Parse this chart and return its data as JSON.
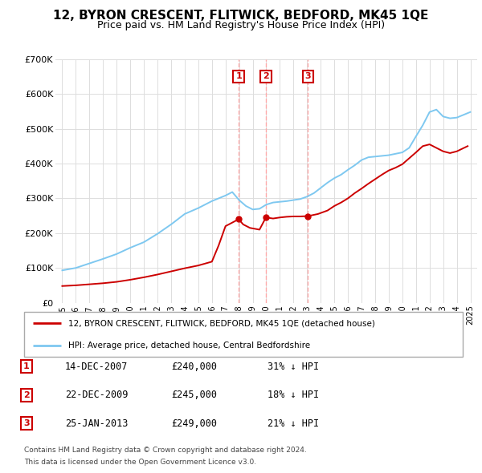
{
  "title": "12, BYRON CRESCENT, FLITWICK, BEDFORD, MK45 1QE",
  "subtitle": "Price paid vs. HM Land Registry's House Price Index (HPI)",
  "title_fontsize": 11,
  "subtitle_fontsize": 9,
  "hpi_years": [
    1995,
    1996,
    1997,
    1998,
    1999,
    2000,
    2001,
    2002,
    2003,
    2004,
    2005,
    2006,
    2007,
    2007.5,
    2008,
    2008.5,
    2009,
    2009.5,
    2010,
    2010.5,
    2011,
    2011.5,
    2012,
    2012.5,
    2013,
    2013.5,
    2014,
    2014.5,
    2015,
    2015.5,
    2016,
    2016.5,
    2017,
    2017.5,
    2018,
    2018.5,
    2019,
    2019.5,
    2020,
    2020.5,
    2021,
    2021.5,
    2022,
    2022.5,
    2023,
    2023.5,
    2024,
    2024.5,
    2025
  ],
  "hpi_values": [
    93000,
    100000,
    113000,
    126000,
    140000,
    158000,
    174000,
    198000,
    225000,
    255000,
    272000,
    292000,
    308000,
    318000,
    295000,
    278000,
    268000,
    270000,
    282000,
    288000,
    290000,
    292000,
    295000,
    298000,
    305000,
    315000,
    330000,
    345000,
    358000,
    368000,
    382000,
    395000,
    410000,
    418000,
    420000,
    422000,
    424000,
    428000,
    432000,
    445000,
    478000,
    510000,
    548000,
    555000,
    535000,
    530000,
    532000,
    540000,
    548000
  ],
  "price_years": [
    1995,
    1996,
    1997,
    1998,
    1999,
    2000,
    2001,
    2002,
    2003,
    2004,
    2005,
    2006,
    2006.5,
    2007.0,
    2007.97,
    2008.3,
    2008.8,
    2009.5,
    2009.97,
    2010.5,
    2011,
    2011.5,
    2012.0,
    2012.5,
    2013.07,
    2013.8,
    2014.5,
    2015,
    2015.5,
    2016,
    2016.5,
    2017,
    2017.5,
    2018,
    2018.5,
    2019,
    2019.5,
    2020,
    2020.5,
    2021,
    2021.5,
    2022,
    2022.5,
    2023,
    2023.5,
    2024,
    2024.8
  ],
  "price_values": [
    48000,
    50000,
    53000,
    56000,
    60000,
    66000,
    73000,
    81000,
    90000,
    99000,
    107000,
    118000,
    165000,
    220000,
    240000,
    225000,
    215000,
    210000,
    245000,
    242000,
    245000,
    247000,
    248000,
    248000,
    249000,
    255000,
    265000,
    278000,
    288000,
    300000,
    315000,
    328000,
    342000,
    355000,
    368000,
    380000,
    388000,
    398000,
    415000,
    432000,
    450000,
    455000,
    445000,
    435000,
    430000,
    435000,
    450000
  ],
  "sale_points": [
    {
      "label": "1",
      "year": 2007.97,
      "price": 240000,
      "date": "14-DEC-2007",
      "amount": "£240,000",
      "pct": "31% ↓ HPI"
    },
    {
      "label": "2",
      "year": 2009.97,
      "price": 245000,
      "date": "22-DEC-2009",
      "amount": "£245,000",
      "pct": "18% ↓ HPI"
    },
    {
      "label": "3",
      "year": 2013.07,
      "price": 249000,
      "date": "25-JAN-2013",
      "amount": "£249,000",
      "pct": "21% ↓ HPI"
    }
  ],
  "vline_years": [
    2007.97,
    2009.97,
    2013.07
  ],
  "ylim": [
    0,
    700000
  ],
  "yticks": [
    0,
    100000,
    200000,
    300000,
    400000,
    500000,
    600000,
    700000
  ],
  "ytick_labels": [
    "£0",
    "£100K",
    "£200K",
    "£300K",
    "£400K",
    "£500K",
    "£600K",
    "£700K"
  ],
  "xlim_min": 1994.5,
  "xlim_max": 2025.5,
  "xticks": [
    1995,
    1996,
    1997,
    1998,
    1999,
    2000,
    2001,
    2002,
    2003,
    2004,
    2005,
    2006,
    2007,
    2008,
    2009,
    2010,
    2011,
    2012,
    2013,
    2014,
    2015,
    2016,
    2017,
    2018,
    2019,
    2020,
    2021,
    2022,
    2023,
    2024,
    2025
  ],
  "hpi_color": "#7ec8f0",
  "price_color": "#cc0000",
  "vline_color": "#ffaaaa",
  "grid_color": "#dddddd",
  "box_color": "#cc0000",
  "legend_label_price": "12, BYRON CRESCENT, FLITWICK, BEDFORD, MK45 1QE (detached house)",
  "legend_label_hpi": "HPI: Average price, detached house, Central Bedfordshire",
  "footnote_line1": "Contains HM Land Registry data © Crown copyright and database right 2024.",
  "footnote_line2": "This data is licensed under the Open Government Licence v3.0."
}
